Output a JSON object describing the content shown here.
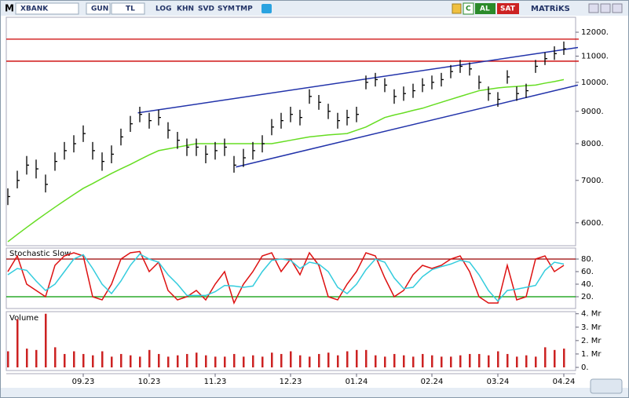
{
  "toolbar": {
    "logo": "M",
    "symbol": "XBANK",
    "period": "GUN",
    "currency": "TL",
    "buttons": [
      "LOG",
      "KHN",
      "SVD",
      "SYM",
      "TMP"
    ],
    "status": "C",
    "buy": "AL",
    "sell": "SAT",
    "brand": "MATRiKS"
  },
  "chart_data": [
    {
      "type": "hlc",
      "log": true,
      "color": "#000000",
      "categories": [
        null,
        null,
        null,
        null,
        null,
        null,
        null,
        null,
        "09.23",
        null,
        null,
        null,
        null,
        null,
        null,
        "10.23",
        null,
        null,
        null,
        null,
        null,
        null,
        "11.23",
        null,
        null,
        null,
        null,
        null,
        null,
        null,
        "12.23",
        null,
        null,
        null,
        null,
        null,
        null,
        "01.24",
        null,
        null,
        null,
        null,
        null,
        null,
        null,
        "02.24",
        null,
        null,
        null,
        null,
        null,
        null,
        "03.24",
        null,
        null,
        null,
        null,
        null,
        null,
        "04.24"
      ],
      "high": [
        6800,
        7250,
        7650,
        7550,
        7150,
        7750,
        8050,
        8250,
        8550,
        8050,
        7750,
        7950,
        8450,
        8850,
        9150,
        8950,
        9050,
        8650,
        8350,
        8150,
        8150,
        7950,
        8050,
        8150,
        7650,
        7850,
        8050,
        8250,
        8750,
        8950,
        9150,
        9050,
        9750,
        9550,
        9250,
        8950,
        9050,
        9150,
        10250,
        10350,
        10150,
        9750,
        9850,
        9950,
        10150,
        10250,
        10350,
        10650,
        10850,
        10750,
        10250,
        9850,
        9650,
        10450,
        9850,
        9950,
        10850,
        11150,
        11400,
        11600
      ],
      "low": [
        6400,
        6800,
        7150,
        7050,
        6700,
        7250,
        7550,
        7750,
        8050,
        7550,
        7250,
        7450,
        7950,
        8350,
        8650,
        8450,
        8550,
        8150,
        7850,
        7650,
        7650,
        7450,
        7550,
        7650,
        7200,
        7350,
        7550,
        7750,
        8250,
        8450,
        8650,
        8550,
        9250,
        9050,
        8750,
        8450,
        8550,
        8650,
        9750,
        9850,
        9650,
        9250,
        9350,
        9450,
        9650,
        9750,
        9850,
        10150,
        10350,
        10250,
        9750,
        9350,
        9150,
        9950,
        9350,
        9450,
        10350,
        10650,
        10850,
        11050
      ],
      "close": [
        6600,
        7000,
        7400,
        7300,
        6900,
        7500,
        7800,
        8000,
        8300,
        7800,
        7500,
        7700,
        8200,
        8600,
        8900,
        8700,
        8800,
        8400,
        8100,
        7900,
        7900,
        7700,
        7800,
        7900,
        7400,
        7600,
        7800,
        8000,
        8500,
        8700,
        8900,
        8800,
        9500,
        9300,
        9000,
        8700,
        8800,
        8900,
        10000,
        10100,
        9900,
        9500,
        9600,
        9700,
        9900,
        10000,
        10100,
        10400,
        10600,
        10500,
        10000,
        9600,
        9400,
        10200,
        9600,
        9700,
        10600,
        10900,
        11100,
        11300
      ],
      "ma": {
        "color": "#66dd22",
        "values": [
          5600,
          5750,
          5900,
          6050,
          6200,
          6350,
          6500,
          6650,
          6800,
          6920,
          7050,
          7180,
          7300,
          7420,
          7550,
          7680,
          7800,
          7850,
          7900,
          7950,
          8000,
          8000,
          8000,
          8000,
          8000,
          8000,
          8000,
          8000,
          8000,
          8050,
          8100,
          8150,
          8200,
          8230,
          8260,
          8280,
          8300,
          8400,
          8500,
          8650,
          8800,
          8880,
          8950,
          9030,
          9100,
          9200,
          9300,
          9400,
          9500,
          9600,
          9700,
          9750,
          9800,
          9830,
          9850,
          9880,
          9900,
          9970,
          10030,
          10100
        ]
      },
      "hlines": {
        "color": "#cc0000",
        "values": [
          11700,
          10800
        ]
      },
      "trendlines": {
        "color": "#2233aa",
        "lines": [
          {
            "x": [
              13.8,
              60.5
            ],
            "y": [
              8950,
              11350
            ]
          },
          {
            "x": [
              24.2,
              60.5
            ],
            "y": [
              7350,
              9900
            ]
          }
        ]
      },
      "ylim": [
        5520,
        12670
      ],
      "yticks": [
        {
          "value": 6000,
          "label": "6000."
        },
        {
          "value": 7000,
          "label": "7000."
        },
        {
          "value": 8000,
          "label": "8000."
        },
        {
          "value": 9000,
          "label": "9000."
        },
        {
          "value": 10000,
          "label": "10000."
        },
        {
          "value": 11000,
          "label": "11000."
        },
        {
          "value": 12000,
          "label": "12000."
        }
      ]
    },
    {
      "type": "line",
      "title": "Stochastic Slow",
      "series": [
        {
          "color": "#dd1111",
          "values": [
            60,
            85,
            40,
            30,
            20,
            70,
            85,
            90,
            85,
            20,
            15,
            40,
            80,
            90,
            92,
            60,
            75,
            30,
            15,
            20,
            30,
            15,
            40,
            60,
            10,
            40,
            60,
            85,
            90,
            60,
            80,
            55,
            90,
            70,
            20,
            15,
            40,
            60,
            90,
            85,
            50,
            20,
            30,
            55,
            70,
            65,
            70,
            80,
            85,
            60,
            20,
            10,
            10,
            70,
            15,
            20,
            80,
            85,
            60,
            70
          ]
        },
        {
          "color": "#33ccdd",
          "values": [
            55,
            65,
            62,
            45,
            30,
            40,
            60,
            80,
            87,
            65,
            40,
            25,
            45,
            70,
            88,
            80,
            75,
            55,
            40,
            22,
            22,
            22,
            28,
            38,
            37,
            35,
            37,
            60,
            78,
            80,
            78,
            65,
            75,
            72,
            60,
            35,
            25,
            40,
            63,
            80,
            75,
            50,
            33,
            35,
            52,
            63,
            68,
            72,
            78,
            75,
            55,
            30,
            13,
            30,
            32,
            35,
            38,
            62,
            75,
            72
          ]
        }
      ],
      "levels": {
        "values": [
          80,
          20
        ],
        "colors": [
          "#990000",
          "#009900"
        ]
      },
      "ylim": [
        0,
        100
      ],
      "yticks": [
        {
          "value": 20,
          "label": "20."
        },
        {
          "value": 40,
          "label": "40."
        },
        {
          "value": 60,
          "label": "60."
        },
        {
          "value": 80,
          "label": "80."
        }
      ]
    },
    {
      "type": "bar",
      "title": "Volume",
      "color": "#cc2222",
      "values": [
        1.2,
        3.6,
        1.4,
        1.3,
        4.0,
        1.5,
        1.0,
        1.2,
        1.0,
        0.9,
        1.2,
        0.8,
        1.0,
        0.9,
        0.8,
        1.3,
        1.0,
        0.8,
        0.9,
        1.0,
        1.1,
        0.9,
        0.8,
        0.8,
        1.0,
        0.8,
        0.9,
        0.8,
        1.1,
        1.0,
        1.2,
        0.9,
        0.8,
        1.0,
        1.1,
        0.9,
        1.2,
        1.3,
        1.3,
        0.9,
        0.8,
        1.0,
        0.9,
        0.8,
        1.0,
        0.9,
        0.8,
        0.8,
        0.9,
        1.0,
        1.0,
        0.9,
        1.2,
        1.0,
        0.8,
        0.9,
        0.8,
        1.5,
        1.3,
        1.4
      ],
      "ylim": [
        0,
        4.1
      ],
      "yticks": [
        {
          "value": 0,
          "label": "0."
        },
        {
          "value": 1,
          "label": "1. Mr"
        },
        {
          "value": 2,
          "label": "2. Mr"
        },
        {
          "value": 3,
          "label": "3. Mr"
        },
        {
          "value": 4,
          "label": "4. Mr"
        }
      ]
    }
  ]
}
